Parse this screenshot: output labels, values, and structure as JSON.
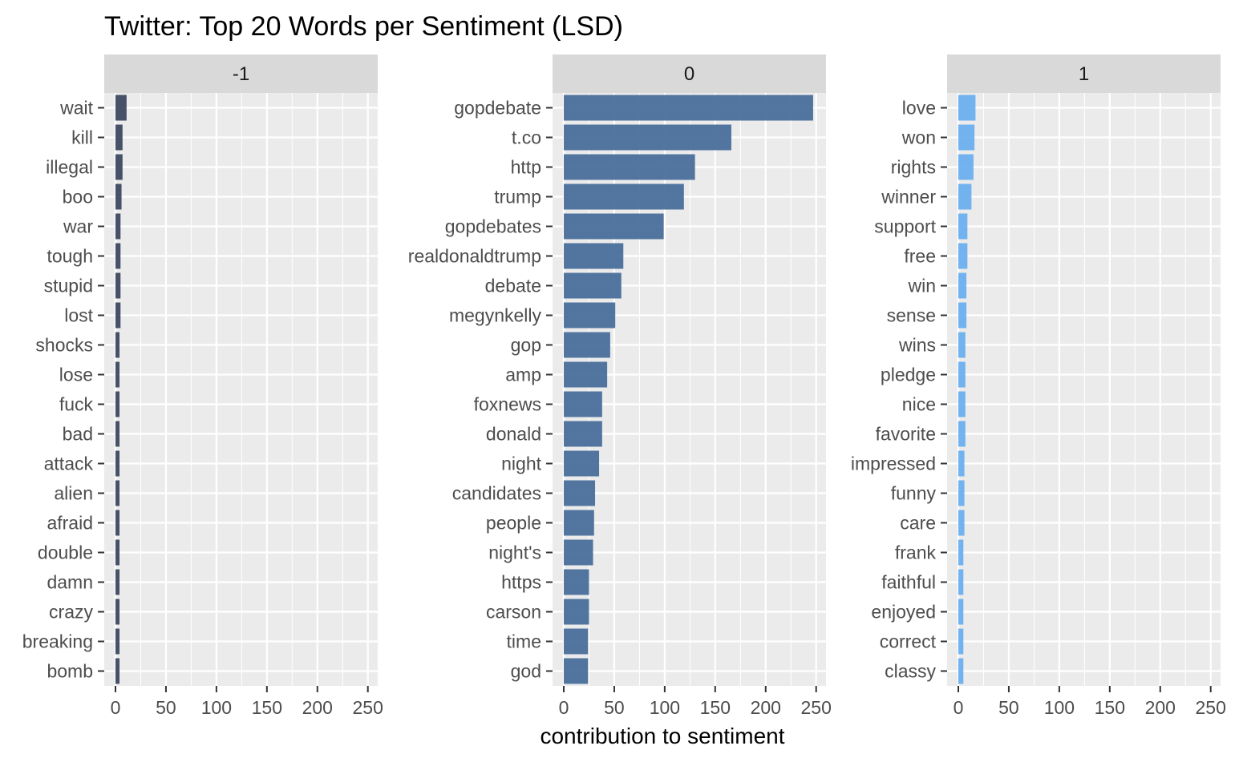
{
  "chart_data": {
    "type": "bar",
    "orientation": "horizontal",
    "title": "Twitter: Top 20 Words per Sentiment (LSD)",
    "xlabel": "contribution to sentiment",
    "ylabel": "",
    "xlim": [
      0,
      250
    ],
    "x_ticks": [
      "0",
      "50",
      "100",
      "150",
      "200",
      "250"
    ],
    "grid": true,
    "facets": [
      {
        "strip_label": "-1",
        "color": "#3E4A61",
        "categories": [
          "wait",
          "kill",
          "illegal",
          "boo",
          "war",
          "tough",
          "stupid",
          "lost",
          "shocks",
          "lose",
          "fuck",
          "bad",
          "attack",
          "alien",
          "afraid",
          "double",
          "damn",
          "crazy",
          "breaking",
          "bomb"
        ],
        "values": [
          11,
          7,
          7,
          6,
          5,
          5,
          5,
          5,
          4,
          4,
          4,
          4,
          4,
          4,
          4,
          4,
          4,
          4,
          4,
          4
        ]
      },
      {
        "strip_label": "0",
        "color": "#4A6F9B",
        "categories": [
          "gopdebate",
          "t.co",
          "http",
          "trump",
          "gopdebates",
          "realdonaldtrump",
          "debate",
          "megynkelly",
          "gop",
          "amp",
          "foxnews",
          "donald",
          "night",
          "candidates",
          "people",
          "night's",
          "https",
          "carson",
          "time",
          "god"
        ],
        "values": [
          247,
          166,
          130,
          119,
          99,
          59,
          57,
          51,
          46,
          43,
          38,
          38,
          35,
          31,
          30,
          29,
          25,
          25,
          24,
          24
        ]
      },
      {
        "strip_label": "1",
        "color": "#6AAFEF",
        "categories": [
          "love",
          "won",
          "rights",
          "winner",
          "support",
          "free",
          "win",
          "sense",
          "wins",
          "pledge",
          "nice",
          "favorite",
          "impressed",
          "funny",
          "care",
          "frank",
          "faithful",
          "enjoyed",
          "correct",
          "classy"
        ],
        "values": [
          17,
          16,
          15,
          13,
          9,
          9,
          8,
          8,
          7,
          7,
          7,
          7,
          6,
          6,
          6,
          5,
          5,
          5,
          5,
          5
        ]
      }
    ]
  }
}
